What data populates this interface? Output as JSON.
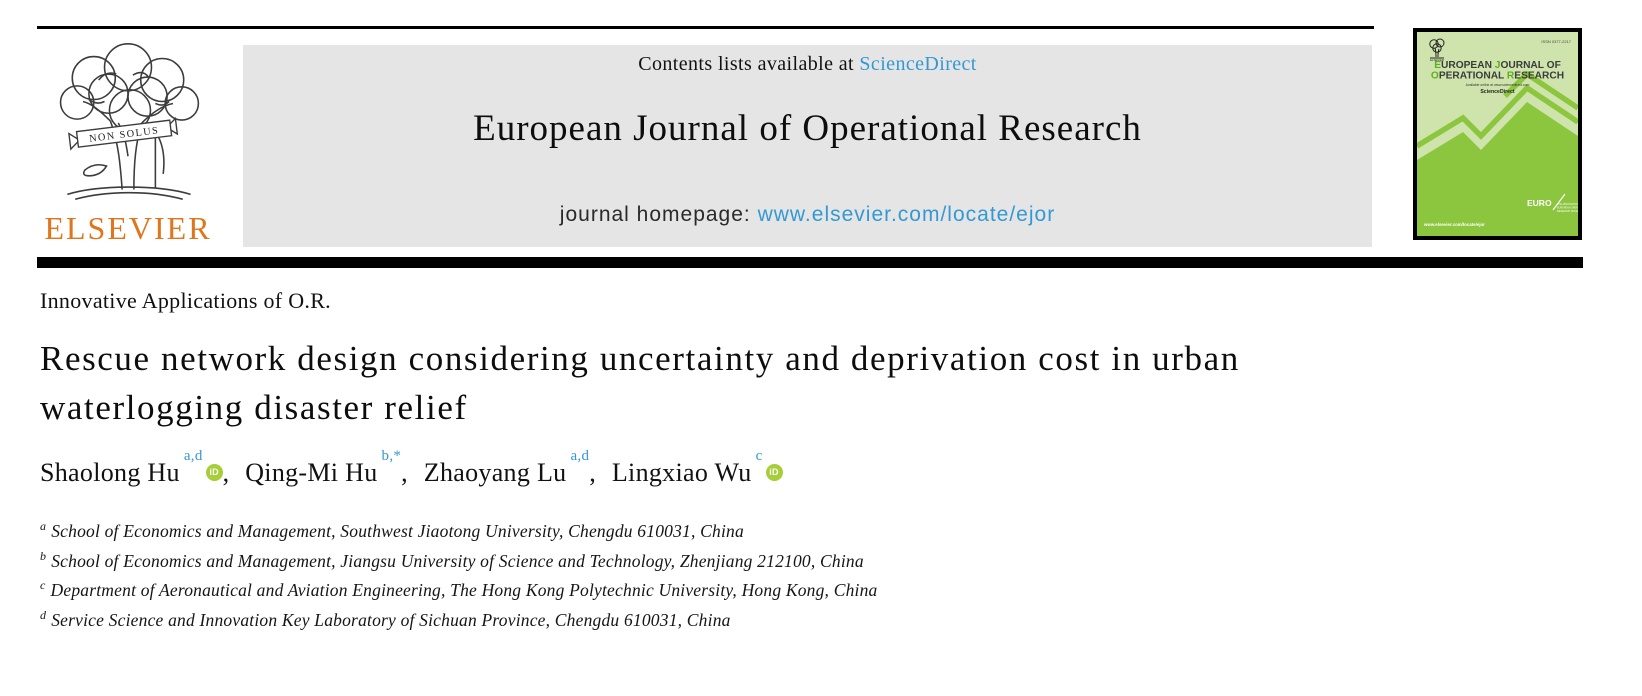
{
  "page": {
    "background": "#ffffff",
    "text_color": "#111111",
    "accent_blue": "#3399d4"
  },
  "elsevier_logo": {
    "wordmark": "ELSEVIER",
    "motto": "NON SOLUS",
    "orange": "#e0751c"
  },
  "header_box": {
    "bg_color": "#e5e5e5",
    "contents_prefix": "Contents lists available at ",
    "contents_link": "ScienceDirect",
    "journal_title": "European Journal of Operational Research",
    "homepage_prefix": "journal homepage: ",
    "homepage_link": "www.elsevier.com/locate/ejor"
  },
  "cover": {
    "issn": "ISSN 0377-2217",
    "title_line1": "EUROPEAN JOURNAL OF",
    "title_line2": "OPERATIONAL RESEARCH",
    "available_line": "Available online at www.sciencedirect.com",
    "sciencedirect": "ScienceDirect",
    "url": "www.elsevier.com/locate/ejor",
    "euro_label": "EURO",
    "euro_tagline_lines": [
      "THE ASSOCIATION OF",
      "EUROPEAN OPERATIONAL",
      "RESEARCH SOCIETIES"
    ],
    "light_green": "#cfe4ac",
    "dark_green": "#8cc63e",
    "letter_green": "#5fae21"
  },
  "article": {
    "section_label": "Innovative Applications of O.R.",
    "title": "Rescue network design considering uncertainty and deprivation cost in urban waterlogging disaster relief",
    "orcid_label": "iD",
    "authors": [
      {
        "name": "Shaolong Hu",
        "sup": "a,d",
        "orcid": true
      },
      {
        "name": "Qing-Mi Hu",
        "sup": "b,*",
        "orcid": false
      },
      {
        "name": "Zhaoyang Lu",
        "sup": "a,d",
        "orcid": false
      },
      {
        "name": "Lingxiao Wu",
        "sup": "c",
        "orcid": true
      }
    ],
    "affiliations": [
      {
        "sup": "a",
        "text": "School of Economics and Management, Southwest Jiaotong University, Chengdu 610031, China"
      },
      {
        "sup": "b",
        "text": "School of Economics and Management, Jiangsu University of Science and Technology, Zhenjiang 212100, China"
      },
      {
        "sup": "c",
        "text": "Department of Aeronautical and Aviation Engineering, The Hong Kong Polytechnic University, Hong Kong, China"
      },
      {
        "sup": "d",
        "text": "Service Science and Innovation Key Laboratory of Sichuan Province, Chengdu 610031, China"
      }
    ]
  }
}
